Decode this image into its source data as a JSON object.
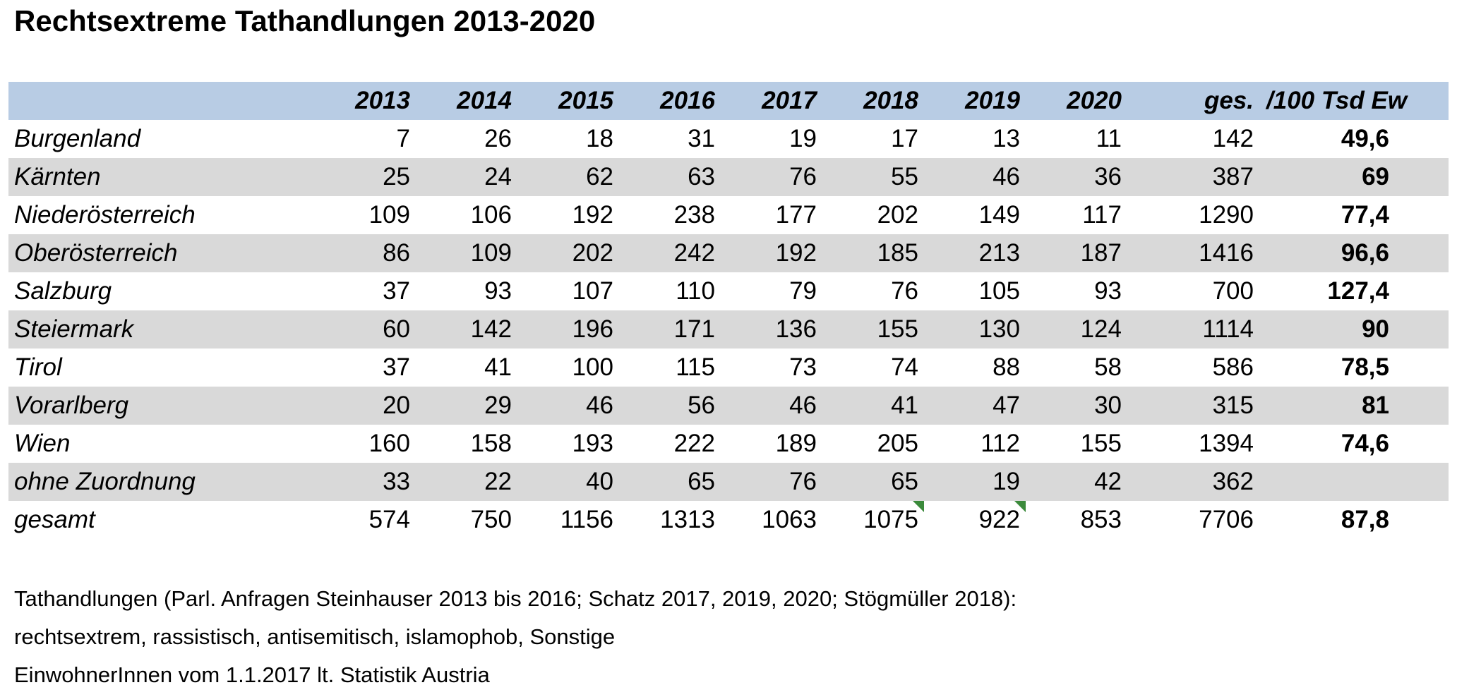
{
  "title": "Rechtsextreme Tathandlungen 2013-2020",
  "headers": [
    "",
    "2013",
    "2014",
    "2015",
    "2016",
    "2017",
    "2018",
    "2019",
    "2020",
    "ges.",
    "/100 Tsd Ew"
  ],
  "rows": [
    {
      "name": "Burgenland",
      "values": [
        "7",
        "26",
        "18",
        "31",
        "19",
        "17",
        "13",
        "11"
      ],
      "total": "142",
      "per_100k": "49,6"
    },
    {
      "name": "Kärnten",
      "values": [
        "25",
        "24",
        "62",
        "63",
        "76",
        "55",
        "46",
        "36"
      ],
      "total": "387",
      "per_100k": "69"
    },
    {
      "name": "Niederösterreich",
      "values": [
        "109",
        "106",
        "192",
        "238",
        "177",
        "202",
        "149",
        "117"
      ],
      "total": "1290",
      "per_100k": "77,4"
    },
    {
      "name": "Oberösterreich",
      "values": [
        "86",
        "109",
        "202",
        "242",
        "192",
        "185",
        "213",
        "187"
      ],
      "total": "1416",
      "per_100k": "96,6"
    },
    {
      "name": "Salzburg",
      "values": [
        "37",
        "93",
        "107",
        "110",
        "79",
        "76",
        "105",
        "93"
      ],
      "total": "700",
      "per_100k": "127,4"
    },
    {
      "name": "Steiermark",
      "values": [
        "60",
        "142",
        "196",
        "171",
        "136",
        "155",
        "130",
        "124"
      ],
      "total": "1114",
      "per_100k": "90"
    },
    {
      "name": "Tirol",
      "values": [
        "37",
        "41",
        "100",
        "115",
        "73",
        "74",
        "88",
        "58"
      ],
      "total": "586",
      "per_100k": "78,5"
    },
    {
      "name": "Vorarlberg",
      "values": [
        "20",
        "29",
        "46",
        "56",
        "46",
        "41",
        "47",
        "30"
      ],
      "total": "315",
      "per_100k": "81"
    },
    {
      "name": "Wien",
      "values": [
        "160",
        "158",
        "193",
        "222",
        "189",
        "205",
        "112",
        "155"
      ],
      "total": "1394",
      "per_100k": "74,6"
    },
    {
      "name": "ohne Zuordnung",
      "values": [
        "33",
        "22",
        "40",
        "65",
        "76",
        "65",
        "19",
        "42"
      ],
      "total": "362",
      "per_100k": ""
    },
    {
      "name": "gesamt",
      "values": [
        "574",
        "750",
        "1156",
        "1313",
        "1063",
        "1075",
        "922",
        "853"
      ],
      "total": "7706",
      "per_100k": "87,8"
    }
  ],
  "notes": [
    "Tathandlungen (Parl. Anfragen Steinhauser 2013 bis 2016; Schatz 2017, 2019, 2020; Stögmüller 2018):",
    "rechtsextrem, rassistisch, antisemitisch, islamophob, Sonstige",
    "EinwohnerInnen vom 1.1.2017 lt. Statistik Austria"
  ],
  "colors": {
    "header_fill": "#b8cce4",
    "row_shade": "#d9d9d9",
    "comment_marker": "#3b8a3b"
  }
}
